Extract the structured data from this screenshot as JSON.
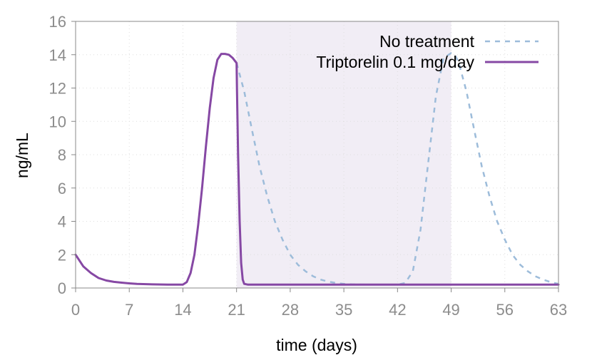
{
  "chart_data": {
    "type": "line",
    "xlabel": "time (days)",
    "ylabel": "ng/mL",
    "xlim": [
      0,
      63
    ],
    "ylim": [
      0,
      16
    ],
    "xticks": [
      0,
      7,
      14,
      21,
      28,
      35,
      42,
      49,
      56,
      63
    ],
    "yticks": [
      0,
      2,
      4,
      6,
      8,
      10,
      12,
      14,
      16
    ],
    "grid": true,
    "legend_position": "top-right",
    "shaded_region": {
      "x": [
        21,
        49
      ],
      "color": "#f1edf5"
    },
    "series": [
      {
        "name": "No treatment",
        "style": "dashed",
        "color": "#9dbcda",
        "x": [
          21,
          22,
          23,
          24,
          25,
          26,
          27,
          28,
          29,
          30,
          31,
          32,
          33,
          34,
          35,
          36,
          38,
          40,
          42,
          43,
          44,
          45,
          46,
          47,
          48,
          49,
          49.5,
          50,
          51,
          52,
          53,
          54,
          55,
          56,
          57,
          58,
          59,
          60,
          61,
          62,
          63
        ],
        "values": [
          13.5,
          11.8,
          9.5,
          7.3,
          5.5,
          4.0,
          2.9,
          2.0,
          1.4,
          1.0,
          0.7,
          0.5,
          0.38,
          0.3,
          0.25,
          0.22,
          0.2,
          0.2,
          0.2,
          0.3,
          1.0,
          3.5,
          7.5,
          11.5,
          13.8,
          14.1,
          14.0,
          13.5,
          11.8,
          9.5,
          7.3,
          5.5,
          4.0,
          2.9,
          2.0,
          1.4,
          1.0,
          0.7,
          0.5,
          0.35,
          0.25
        ]
      },
      {
        "name": "Triptorelin 0.1 mg/day",
        "style": "solid",
        "color": "#8648a4",
        "x": [
          0,
          1,
          2,
          3,
          4,
          5,
          6,
          7,
          8,
          10,
          12,
          13,
          14,
          14.5,
          15,
          15.5,
          16,
          16.5,
          17,
          17.5,
          18,
          18.5,
          19,
          19.5,
          20,
          20.5,
          21,
          21.05,
          21.2,
          21.4,
          21.6,
          21.8,
          22,
          22.5,
          25,
          30,
          40,
          50,
          63
        ],
        "values": [
          2.0,
          1.3,
          0.9,
          0.6,
          0.45,
          0.37,
          0.32,
          0.28,
          0.25,
          0.22,
          0.2,
          0.2,
          0.2,
          0.35,
          0.9,
          2.0,
          3.8,
          6.0,
          8.5,
          10.8,
          12.6,
          13.7,
          14.05,
          14.05,
          14.0,
          13.8,
          13.5,
          12.0,
          8.0,
          4.0,
          1.5,
          0.5,
          0.25,
          0.2,
          0.2,
          0.2,
          0.2,
          0.2,
          0.2
        ]
      }
    ]
  }
}
